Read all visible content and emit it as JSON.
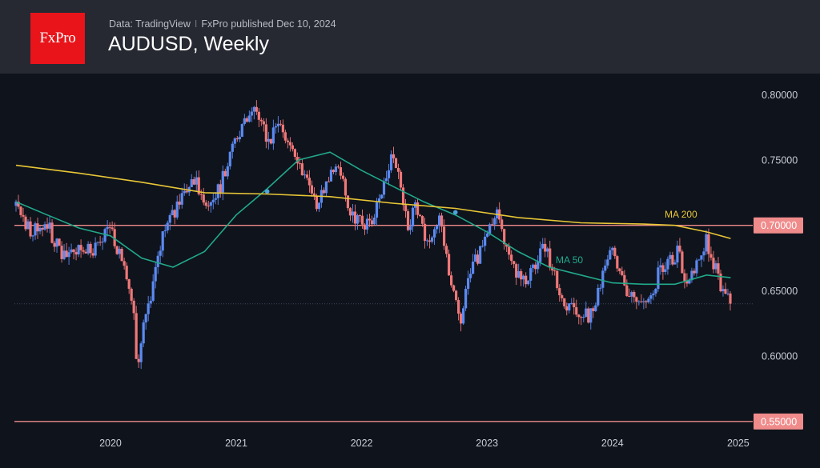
{
  "header": {
    "logo_text": "FxPro",
    "source_left": "Data: TradingView",
    "source_separator": "I",
    "source_right": "FxPro published Dec 10, 2024",
    "title": "AUDUSD, Weekly"
  },
  "colors": {
    "background": "#0f131c",
    "header": "#262932",
    "up_candle": "#5b8af2",
    "down_candle": "#f07878",
    "ma50": "#21a98a",
    "ma200": "#e8c736",
    "level_line": "#f08b8b",
    "last_price_line": "#3d4658"
  },
  "chart_data": {
    "type": "candlestick",
    "title": "AUDUSD, Weekly",
    "ylim": [
      0.545,
      0.81
    ],
    "y_ticks": [
      "0.80000",
      "0.75000",
      "0.70000",
      "0.65000",
      "0.60000",
      "0.55000"
    ],
    "y_tick_values": [
      0.8,
      0.75,
      0.7,
      0.65,
      0.6,
      0.55
    ],
    "x_range": [
      "2019-04-01",
      "2025-01-20"
    ],
    "x_ticks": [
      {
        "label": "2020",
        "date": "2020-01-01"
      },
      {
        "label": "2021",
        "date": "2021-01-01"
      },
      {
        "label": "2022",
        "date": "2022-01-01"
      },
      {
        "label": "2023",
        "date": "2023-01-01"
      },
      {
        "label": "2024",
        "date": "2024-01-01"
      },
      {
        "label": "2025",
        "date": "2025-01-01"
      }
    ],
    "horizontal_levels": [
      {
        "value": 0.7,
        "label": "0.70000"
      },
      {
        "value": 0.55,
        "label": "0.55000"
      }
    ],
    "last_price": 0.64,
    "close_path": [
      [
        "2019-04-01",
        0.715
      ],
      [
        "2019-05-15",
        0.695
      ],
      [
        "2019-07-01",
        0.7
      ],
      [
        "2019-08-15",
        0.675
      ],
      [
        "2019-10-01",
        0.68
      ],
      [
        "2019-11-15",
        0.682
      ],
      [
        "2020-01-01",
        0.7
      ],
      [
        "2020-02-15",
        0.66
      ],
      [
        "2020-03-10",
        0.63
      ],
      [
        "2020-03-19",
        0.58
      ],
      [
        "2020-04-01",
        0.615
      ],
      [
        "2020-05-01",
        0.65
      ],
      [
        "2020-06-01",
        0.69
      ],
      [
        "2020-07-15",
        0.715
      ],
      [
        "2020-09-01",
        0.735
      ],
      [
        "2020-10-15",
        0.71
      ],
      [
        "2020-11-15",
        0.73
      ],
      [
        "2021-01-01",
        0.77
      ],
      [
        "2021-02-25",
        0.79
      ],
      [
        "2021-04-01",
        0.765
      ],
      [
        "2021-05-15",
        0.775
      ],
      [
        "2021-07-01",
        0.75
      ],
      [
        "2021-08-20",
        0.715
      ],
      [
        "2021-10-20",
        0.75
      ],
      [
        "2021-12-01",
        0.705
      ],
      [
        "2022-01-28",
        0.7
      ],
      [
        "2022-04-05",
        0.755
      ],
      [
        "2022-05-15",
        0.7
      ],
      [
        "2022-06-10",
        0.715
      ],
      [
        "2022-07-15",
        0.68
      ],
      [
        "2022-08-15",
        0.705
      ],
      [
        "2022-10-13",
        0.625
      ],
      [
        "2022-11-15",
        0.665
      ],
      [
        "2023-02-02",
        0.71
      ],
      [
        "2023-03-15",
        0.665
      ],
      [
        "2023-05-01",
        0.66
      ],
      [
        "2023-06-15",
        0.685
      ],
      [
        "2023-08-15",
        0.64
      ],
      [
        "2023-10-25",
        0.63
      ],
      [
        "2023-12-28",
        0.68
      ],
      [
        "2024-02-15",
        0.65
      ],
      [
        "2024-04-19",
        0.64
      ],
      [
        "2024-05-15",
        0.665
      ],
      [
        "2024-07-10",
        0.68
      ],
      [
        "2024-08-05",
        0.65
      ],
      [
        "2024-09-30",
        0.69
      ],
      [
        "2024-11-15",
        0.65
      ],
      [
        "2024-12-10",
        0.64
      ]
    ],
    "series": [
      {
        "name": "MA 50",
        "color": "#21a98a",
        "points": [
          [
            "2019-04-01",
            0.718
          ],
          [
            "2019-07-01",
            0.708
          ],
          [
            "2019-10-01",
            0.698
          ],
          [
            "2020-01-01",
            0.692
          ],
          [
            "2020-04-01",
            0.675
          ],
          [
            "2020-07-01",
            0.668
          ],
          [
            "2020-10-01",
            0.68
          ],
          [
            "2021-01-01",
            0.708
          ],
          [
            "2021-04-01",
            0.728
          ],
          [
            "2021-07-01",
            0.75
          ],
          [
            "2021-10-01",
            0.756
          ],
          [
            "2022-01-01",
            0.742
          ],
          [
            "2022-04-01",
            0.73
          ],
          [
            "2022-07-01",
            0.718
          ],
          [
            "2022-10-01",
            0.708
          ],
          [
            "2023-01-01",
            0.695
          ],
          [
            "2023-04-01",
            0.68
          ],
          [
            "2023-07-01",
            0.668
          ],
          [
            "2023-10-01",
            0.662
          ],
          [
            "2024-01-01",
            0.656
          ],
          [
            "2024-04-01",
            0.655
          ],
          [
            "2024-07-01",
            0.655
          ],
          [
            "2024-10-01",
            0.662
          ],
          [
            "2024-12-10",
            0.66
          ]
        ]
      },
      {
        "name": "MA 200",
        "color": "#e8c736",
        "points": [
          [
            "2019-04-01",
            0.746
          ],
          [
            "2019-10-01",
            0.74
          ],
          [
            "2020-04-01",
            0.733
          ],
          [
            "2020-10-01",
            0.725
          ],
          [
            "2021-04-01",
            0.724
          ],
          [
            "2021-10-01",
            0.722
          ],
          [
            "2022-04-01",
            0.717
          ],
          [
            "2022-10-01",
            0.713
          ],
          [
            "2023-04-01",
            0.706
          ],
          [
            "2023-10-01",
            0.702
          ],
          [
            "2024-04-01",
            0.701
          ],
          [
            "2024-07-01",
            0.7
          ],
          [
            "2024-10-01",
            0.695
          ],
          [
            "2024-12-10",
            0.69
          ]
        ]
      }
    ],
    "crossovers": [
      {
        "date": "2021-04-01",
        "value": 0.726
      },
      {
        "date": "2022-10-01",
        "value": 0.71
      }
    ],
    "annotations": [
      {
        "text": "MA 200",
        "date": "2024-06-01",
        "value": 0.706,
        "color": "#e8c736"
      },
      {
        "text": "MA 50",
        "date": "2023-07-20",
        "value": 0.671,
        "color": "#21a98a"
      }
    ]
  }
}
